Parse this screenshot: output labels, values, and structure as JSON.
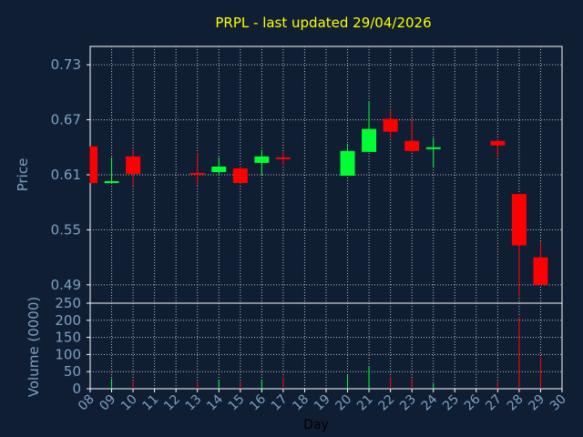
{
  "chart_data": {
    "type": "candlestick",
    "title": "PRPL - last updated 29/04/2026",
    "xlabel": "Day",
    "price_panel": {
      "ylabel": "Price",
      "ylim": [
        0.47,
        0.75
      ],
      "yticks": [
        "0.73",
        "0.67",
        "0.61",
        "0.55",
        "0.49"
      ],
      "ytick_values": [
        0.73,
        0.67,
        0.61,
        0.55,
        0.49
      ]
    },
    "volume_panel": {
      "ylabel": "Volume (0000)",
      "ylim": [
        0,
        250
      ],
      "yticks": [
        "250",
        "200",
        "150",
        "100",
        "50",
        "0"
      ],
      "ytick_values": [
        250,
        200,
        150,
        100,
        50,
        0
      ]
    },
    "x_days": [
      "08",
      "09",
      "10",
      "11",
      "12",
      "13",
      "14",
      "15",
      "16",
      "17",
      "18",
      "19",
      "20",
      "21",
      "22",
      "23",
      "24",
      "25",
      "26",
      "27",
      "28",
      "29",
      "30"
    ],
    "candles": [
      {
        "day": "08",
        "open": 0.641,
        "high": 0.641,
        "low": 0.601,
        "close": 0.601,
        "volume": 0
      },
      {
        "day": "09",
        "open": 0.601,
        "high": 0.629,
        "low": 0.6,
        "close": 0.603,
        "volume": 30
      },
      {
        "day": "10",
        "open": 0.63,
        "high": 0.638,
        "low": 0.598,
        "close": 0.611,
        "volume": 25
      },
      {
        "day": "13",
        "open": 0.612,
        "high": 0.634,
        "low": 0.598,
        "close": 0.61,
        "volume": 20
      },
      {
        "day": "14",
        "open": 0.613,
        "high": 0.629,
        "low": 0.61,
        "close": 0.619,
        "volume": 25
      },
      {
        "day": "15",
        "open": 0.617,
        "high": 0.619,
        "low": 0.6,
        "close": 0.601,
        "volume": 20
      },
      {
        "day": "16",
        "open": 0.623,
        "high": 0.637,
        "low": 0.61,
        "close": 0.63,
        "volume": 25
      },
      {
        "day": "17",
        "open": 0.629,
        "high": 0.635,
        "low": 0.621,
        "close": 0.627,
        "volume": 35
      },
      {
        "day": "20",
        "open": 0.609,
        "high": 0.644,
        "low": 0.609,
        "close": 0.636,
        "volume": 40
      },
      {
        "day": "21",
        "open": 0.635,
        "high": 0.69,
        "low": 0.635,
        "close": 0.66,
        "volume": 65
      },
      {
        "day": "22",
        "open": 0.671,
        "high": 0.681,
        "low": 0.65,
        "close": 0.657,
        "volume": 35
      },
      {
        "day": "23",
        "open": 0.647,
        "high": 0.67,
        "low": 0.635,
        "close": 0.636,
        "volume": 30
      },
      {
        "day": "24",
        "open": 0.639,
        "high": 0.65,
        "low": 0.618,
        "close": 0.64,
        "volume": 15
      },
      {
        "day": "27",
        "open": 0.647,
        "high": 0.649,
        "low": 0.629,
        "close": 0.642,
        "volume": 20
      },
      {
        "day": "28",
        "open": 0.589,
        "high": 0.589,
        "low": 0.477,
        "close": 0.533,
        "volume": 210
      },
      {
        "day": "29",
        "open": 0.52,
        "high": 0.537,
        "low": 0.49,
        "close": 0.49,
        "volume": 92
      }
    ],
    "colors": {
      "background": "#0f1e33",
      "plot_background": "#0f1e33",
      "up": "#00ff33",
      "down": "#ff0000",
      "grid": "#c0c0c0",
      "axis_text": "#7fa0c0",
      "title": "#ffff00"
    },
    "grid": true
  }
}
